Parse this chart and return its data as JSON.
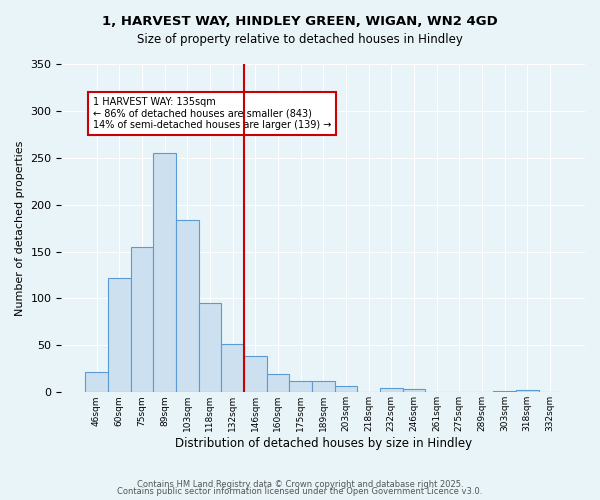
{
  "title1": "1, HARVEST WAY, HINDLEY GREEN, WIGAN, WN2 4GD",
  "title2": "Size of property relative to detached houses in Hindley",
  "xlabel": "Distribution of detached houses by size in Hindley",
  "ylabel": "Number of detached properties",
  "bins": [
    "46sqm",
    "60sqm",
    "75sqm",
    "89sqm",
    "103sqm",
    "118sqm",
    "132sqm",
    "146sqm",
    "160sqm",
    "175sqm",
    "189sqm",
    "203sqm",
    "218sqm",
    "232sqm",
    "246sqm",
    "261sqm",
    "275sqm",
    "289sqm",
    "303sqm",
    "318sqm",
    "332sqm"
  ],
  "values": [
    22,
    122,
    155,
    255,
    184,
    95,
    52,
    39,
    20,
    12,
    12,
    7,
    0,
    5,
    4,
    0,
    0,
    0,
    1,
    2,
    0
  ],
  "bar_color": "#cce0f0",
  "bar_edge_color": "#5b9bd5",
  "vline_x": 6.5,
  "vline_color": "#cc0000",
  "annotation_text": "1 HARVEST WAY: 135sqm\n← 86% of detached houses are smaller (843)\n14% of semi-detached houses are larger (139) →",
  "annotation_box_color": "#ffffff",
  "annotation_box_edge": "#cc0000",
  "ylim": [
    0,
    350
  ],
  "yticks": [
    0,
    50,
    100,
    150,
    200,
    250,
    300,
    350
  ],
  "footer1": "Contains HM Land Registry data © Crown copyright and database right 2025.",
  "footer2": "Contains public sector information licensed under the Open Government Licence v3.0.",
  "bg_color": "#e8f4f8",
  "plot_bg_color": "#e8f4f8"
}
